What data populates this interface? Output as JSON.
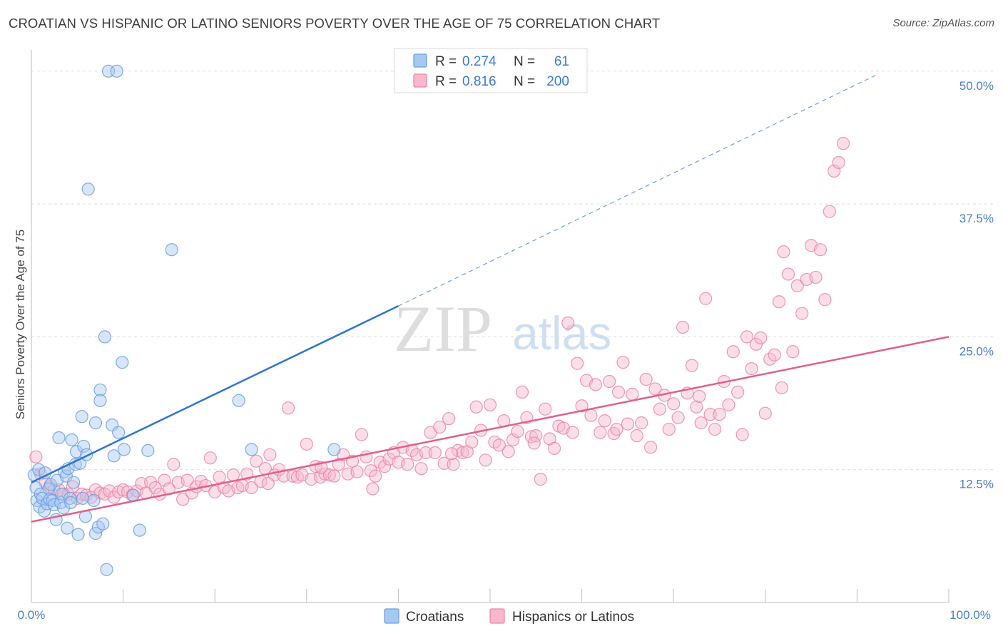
{
  "title": "CROATIAN VS HISPANIC OR LATINO SENIORS POVERTY OVER THE AGE OF 75 CORRELATION CHART",
  "source": "Source: ZipAtlas.com",
  "watermark": {
    "zip": "ZIP",
    "atlas": "atlas"
  },
  "colors": {
    "blue": "#a7c8f0",
    "blue_stroke": "#6b9ee0",
    "blue_line": "#2f74d0",
    "pink": "#f7b8cc",
    "pink_stroke": "#eb85a6",
    "pink_line": "#e0608d",
    "axis_label": "#4a7fd0",
    "grid": "#dcdcdc"
  },
  "legend": {
    "rows": [
      {
        "r_label": "R =",
        "r_value": "0.274",
        "n_label": "N =",
        "n_value": "61"
      },
      {
        "r_label": "R =",
        "r_value": "0.816",
        "n_label": "N =",
        "n_value": "200"
      }
    ]
  },
  "bottom_legend": [
    "Croatians",
    "Hispanics or Latinos"
  ],
  "chart_data": {
    "type": "scatter",
    "title": "CROATIAN VS HISPANIC OR LATINO SENIORS POVERTY OVER THE AGE OF 75 CORRELATION CHART",
    "xlabel": "",
    "ylabel": "Seniors Poverty Over the Age of 75",
    "xlim": [
      0,
      100
    ],
    "ylim": [
      0,
      52
    ],
    "x_tick_labels": [
      "0.0%",
      "100.0%"
    ],
    "y_ticks": [
      12.5,
      25.0,
      37.5,
      50.0
    ],
    "y_tick_labels": [
      "12.5%",
      "25.0%",
      "37.5%",
      "50.0%"
    ],
    "grid": true,
    "legend_position": "top-center",
    "series": [
      {
        "name": "Croatians",
        "R": 0.274,
        "N": 61,
        "trend": {
          "x0": 0,
          "y0": 11.3,
          "x1": 40,
          "y1": 27.9,
          "dashed_to_x": 92,
          "dashed_to_y": 49.6
        },
        "points": [
          [
            0.3,
            12.0
          ],
          [
            0.5,
            10.8
          ],
          [
            0.6,
            9.6
          ],
          [
            0.8,
            12.5
          ],
          [
            0.9,
            9.0
          ],
          [
            1.0,
            10.2
          ],
          [
            1.2,
            9.8
          ],
          [
            1.4,
            8.6
          ],
          [
            1.5,
            12.2
          ],
          [
            1.7,
            9.3
          ],
          [
            1.9,
            10.7
          ],
          [
            2.0,
            9.7
          ],
          [
            2.1,
            11.1
          ],
          [
            2.3,
            9.6
          ],
          [
            2.5,
            9.2
          ],
          [
            2.7,
            7.8
          ],
          [
            2.8,
            11.5
          ],
          [
            3.0,
            15.5
          ],
          [
            3.2,
            9.4
          ],
          [
            3.3,
            10.2
          ],
          [
            3.5,
            8.9
          ],
          [
            3.6,
            12.3
          ],
          [
            3.8,
            11.9
          ],
          [
            3.9,
            7.0
          ],
          [
            4.0,
            12.6
          ],
          [
            4.2,
            9.8
          ],
          [
            4.3,
            9.4
          ],
          [
            4.4,
            15.3
          ],
          [
            4.6,
            11.3
          ],
          [
            4.8,
            13.0
          ],
          [
            4.9,
            14.2
          ],
          [
            5.1,
            6.4
          ],
          [
            5.3,
            13.1
          ],
          [
            5.5,
            17.5
          ],
          [
            5.6,
            9.8
          ],
          [
            5.7,
            14.7
          ],
          [
            5.9,
            8.1
          ],
          [
            6.0,
            13.9
          ],
          [
            6.2,
            38.9
          ],
          [
            6.8,
            9.6
          ],
          [
            7.0,
            16.9
          ],
          [
            7.0,
            6.5
          ],
          [
            7.3,
            7.1
          ],
          [
            7.5,
            20.0
          ],
          [
            7.5,
            19.0
          ],
          [
            7.8,
            7.4
          ],
          [
            8.0,
            25.0
          ],
          [
            8.2,
            3.1
          ],
          [
            8.4,
            50.0
          ],
          [
            8.8,
            16.7
          ],
          [
            9.0,
            13.8
          ],
          [
            9.3,
            50.0
          ],
          [
            9.5,
            16.0
          ],
          [
            9.9,
            22.6
          ],
          [
            10.1,
            14.4
          ],
          [
            11.1,
            10.1
          ],
          [
            11.8,
            6.8
          ],
          [
            12.7,
            14.3
          ],
          [
            15.3,
            33.2
          ],
          [
            22.6,
            19.0
          ],
          [
            24.0,
            14.4
          ],
          [
            33.0,
            14.4
          ]
        ]
      },
      {
        "name": "Hispanics or Latinos",
        "R": 0.816,
        "N": 200,
        "trend": {
          "x0": 0,
          "y0": 7.6,
          "x1": 100,
          "y1": 25.0
        },
        "points": [
          [
            0.5,
            13.7
          ],
          [
            1.0,
            12.1
          ],
          [
            1.5,
            11.3
          ],
          [
            2.0,
            10.9
          ],
          [
            2.5,
            10.6
          ],
          [
            3.0,
            10.6
          ],
          [
            3.5,
            10.2
          ],
          [
            4.0,
            10.2
          ],
          [
            4.5,
            10.9
          ],
          [
            5.0,
            9.8
          ],
          [
            5.5,
            10.2
          ],
          [
            6.0,
            10.1
          ],
          [
            6.5,
            9.9
          ],
          [
            7.0,
            10.6
          ],
          [
            7.5,
            10.3
          ],
          [
            8.0,
            10.2
          ],
          [
            8.5,
            10.5
          ],
          [
            9.0,
            9.9
          ],
          [
            9.5,
            10.4
          ],
          [
            10.0,
            10.6
          ],
          [
            10.5,
            10.4
          ],
          [
            11.0,
            10.1
          ],
          [
            11.5,
            10.5
          ],
          [
            12.0,
            11.2
          ],
          [
            12.5,
            10.3
          ],
          [
            13.0,
            11.3
          ],
          [
            13.5,
            10.8
          ],
          [
            14.0,
            10.2
          ],
          [
            14.5,
            11.5
          ],
          [
            15.0,
            10.7
          ],
          [
            15.5,
            13.0
          ],
          [
            16.0,
            11.3
          ],
          [
            16.5,
            9.7
          ],
          [
            17.0,
            11.5
          ],
          [
            17.5,
            10.3
          ],
          [
            18.0,
            10.9
          ],
          [
            18.5,
            11.4
          ],
          [
            19.0,
            11.0
          ],
          [
            19.5,
            13.6
          ],
          [
            20.0,
            10.4
          ],
          [
            20.5,
            11.8
          ],
          [
            21.0,
            10.8
          ],
          [
            21.5,
            10.5
          ],
          [
            22.0,
            12.0
          ],
          [
            22.5,
            10.8
          ],
          [
            23.0,
            11.0
          ],
          [
            23.5,
            12.1
          ],
          [
            24.0,
            10.8
          ],
          [
            24.5,
            13.3
          ],
          [
            25.0,
            11.4
          ],
          [
            25.5,
            12.6
          ],
          [
            26.0,
            13.9
          ],
          [
            26.5,
            12.0
          ],
          [
            27.0,
            12.5
          ],
          [
            27.5,
            11.9
          ],
          [
            28.0,
            18.3
          ],
          [
            28.5,
            11.9
          ],
          [
            29.0,
            11.8
          ],
          [
            29.5,
            12.0
          ],
          [
            30.0,
            14.9
          ],
          [
            30.5,
            11.6
          ],
          [
            31.0,
            12.8
          ],
          [
            31.5,
            11.8
          ],
          [
            32.0,
            12.1
          ],
          [
            32.5,
            12.0
          ],
          [
            33.0,
            11.9
          ],
          [
            33.5,
            13.0
          ],
          [
            34.0,
            13.9
          ],
          [
            34.5,
            12.1
          ],
          [
            35.0,
            13.3
          ],
          [
            35.5,
            12.3
          ],
          [
            36.0,
            15.8
          ],
          [
            36.5,
            13.7
          ],
          [
            37.0,
            12.4
          ],
          [
            37.5,
            11.9
          ],
          [
            38.0,
            13.2
          ],
          [
            38.5,
            12.8
          ],
          [
            39.0,
            13.5
          ],
          [
            39.5,
            14.1
          ],
          [
            40.0,
            13.2
          ],
          [
            40.5,
            14.6
          ],
          [
            41.0,
            13.0
          ],
          [
            41.5,
            14.3
          ],
          [
            42.0,
            13.9
          ],
          [
            42.5,
            12.6
          ],
          [
            43.0,
            14.1
          ],
          [
            43.5,
            16.0
          ],
          [
            44.0,
            14.1
          ],
          [
            44.5,
            16.5
          ],
          [
            45.0,
            13.1
          ],
          [
            45.5,
            17.3
          ],
          [
            46.0,
            13.0
          ],
          [
            46.5,
            14.3
          ],
          [
            47.0,
            14.1
          ],
          [
            47.5,
            14.2
          ],
          [
            48.0,
            15.1
          ],
          [
            48.5,
            18.4
          ],
          [
            49.0,
            16.2
          ],
          [
            49.5,
            13.4
          ],
          [
            50.0,
            18.6
          ],
          [
            50.5,
            15.1
          ],
          [
            51.0,
            14.8
          ],
          [
            51.5,
            17.1
          ],
          [
            52.0,
            14.2
          ],
          [
            52.5,
            15.3
          ],
          [
            53.0,
            16.1
          ],
          [
            53.5,
            19.8
          ],
          [
            54.0,
            17.4
          ],
          [
            54.5,
            15.6
          ],
          [
            55.0,
            15.7
          ],
          [
            55.5,
            11.6
          ],
          [
            56.0,
            18.2
          ],
          [
            56.5,
            15.4
          ],
          [
            57.0,
            14.5
          ],
          [
            57.5,
            16.6
          ],
          [
            58.0,
            16.4
          ],
          [
            58.5,
            26.3
          ],
          [
            59.0,
            16.0
          ],
          [
            59.5,
            22.5
          ],
          [
            60.0,
            18.5
          ],
          [
            60.5,
            20.9
          ],
          [
            61.0,
            17.6
          ],
          [
            61.5,
            20.5
          ],
          [
            62.0,
            16.0
          ],
          [
            62.5,
            17.1
          ],
          [
            63.0,
            20.8
          ],
          [
            63.5,
            15.9
          ],
          [
            64.0,
            19.8
          ],
          [
            64.5,
            22.6
          ],
          [
            65.0,
            16.8
          ],
          [
            65.5,
            19.6
          ],
          [
            66.0,
            15.7
          ],
          [
            66.5,
            16.9
          ],
          [
            67.0,
            21.0
          ],
          [
            67.5,
            14.6
          ],
          [
            68.0,
            20.1
          ],
          [
            68.5,
            18.2
          ],
          [
            69.0,
            19.5
          ],
          [
            69.5,
            16.3
          ],
          [
            70.0,
            18.7
          ],
          [
            70.5,
            17.4
          ],
          [
            71.0,
            25.9
          ],
          [
            71.5,
            19.7
          ],
          [
            72.0,
            22.3
          ],
          [
            72.5,
            18.4
          ],
          [
            73.0,
            16.9
          ],
          [
            73.5,
            28.6
          ],
          [
            74.0,
            17.7
          ],
          [
            74.5,
            16.3
          ],
          [
            75.0,
            17.7
          ],
          [
            75.5,
            20.8
          ],
          [
            76.0,
            18.6
          ],
          [
            76.5,
            23.6
          ],
          [
            77.0,
            19.8
          ],
          [
            77.5,
            15.8
          ],
          [
            78.0,
            25.0
          ],
          [
            78.5,
            22.0
          ],
          [
            79.0,
            24.3
          ],
          [
            79.5,
            24.9
          ],
          [
            80.0,
            17.8
          ],
          [
            80.5,
            22.9
          ],
          [
            81.0,
            23.3
          ],
          [
            81.5,
            28.3
          ],
          [
            82.0,
            33.0
          ],
          [
            82.5,
            30.9
          ],
          [
            83.0,
            23.6
          ],
          [
            83.5,
            29.8
          ],
          [
            84.0,
            27.2
          ],
          [
            84.5,
            30.4
          ],
          [
            85.0,
            33.6
          ],
          [
            85.5,
            30.6
          ],
          [
            86.0,
            33.2
          ],
          [
            86.5,
            28.5
          ],
          [
            87.0,
            36.8
          ],
          [
            87.5,
            40.6
          ],
          [
            88.0,
            41.4
          ],
          [
            88.5,
            43.2
          ],
          [
            25.8,
            11.2
          ],
          [
            31.6,
            12.7
          ],
          [
            37.2,
            10.7
          ],
          [
            45.8,
            14.0
          ],
          [
            54.8,
            15.0
          ],
          [
            63.8,
            16.3
          ],
          [
            72.8,
            19.4
          ],
          [
            81.8,
            20.2
          ]
        ]
      }
    ]
  }
}
